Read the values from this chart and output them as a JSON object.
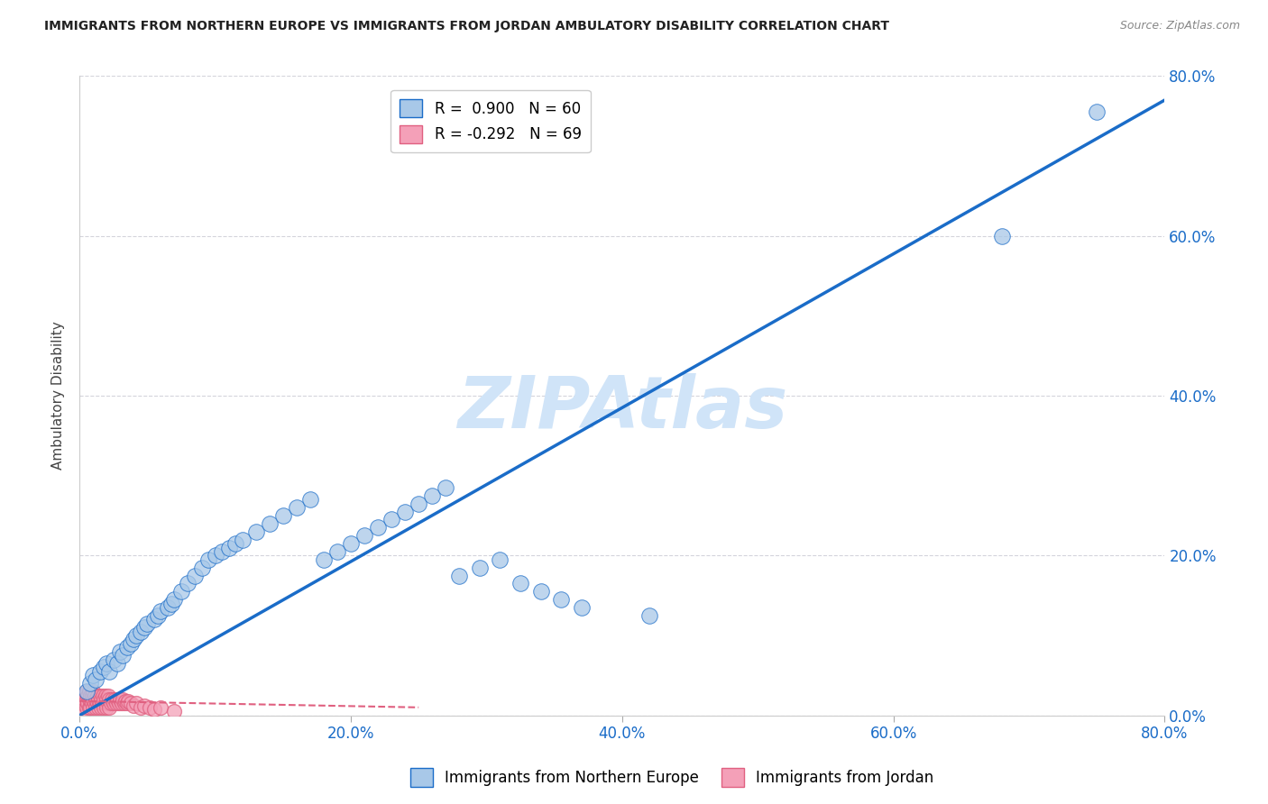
{
  "title": "IMMIGRANTS FROM NORTHERN EUROPE VS IMMIGRANTS FROM JORDAN AMBULATORY DISABILITY CORRELATION CHART",
  "source": "Source: ZipAtlas.com",
  "xlabel": "",
  "ylabel": "Ambulatory Disability",
  "xlim": [
    0,
    0.8
  ],
  "ylim": [
    0,
    0.8
  ],
  "xticks": [
    0.0,
    0.2,
    0.4,
    0.6,
    0.8
  ],
  "yticks": [
    0.0,
    0.2,
    0.4,
    0.6,
    0.8
  ],
  "xtick_labels": [
    "0.0%",
    "20.0%",
    "40.0%",
    "60.0%",
    "80.0%"
  ],
  "ytick_labels": [
    "0.0%",
    "20.0%",
    "40.0%",
    "60.0%",
    "80.0%"
  ],
  "blue_R": 0.9,
  "blue_N": 60,
  "pink_R": -0.292,
  "pink_N": 69,
  "blue_color": "#a8c8e8",
  "pink_color": "#f4a0b8",
  "blue_line_color": "#1a6cc8",
  "pink_line_color": "#e06080",
  "legend_label_blue": "Immigrants from Northern Europe",
  "legend_label_pink": "Immigrants from Jordan",
  "watermark": "ZIPAtlas",
  "watermark_color": "#d0e4f8",
  "background_color": "#ffffff",
  "grid_color": "#d0d0d8",
  "blue_scatter_x": [
    0.005,
    0.008,
    0.01,
    0.012,
    0.015,
    0.018,
    0.02,
    0.022,
    0.025,
    0.028,
    0.03,
    0.032,
    0.035,
    0.038,
    0.04,
    0.042,
    0.045,
    0.048,
    0.05,
    0.055,
    0.058,
    0.06,
    0.065,
    0.068,
    0.07,
    0.075,
    0.08,
    0.085,
    0.09,
    0.095,
    0.1,
    0.105,
    0.11,
    0.115,
    0.12,
    0.13,
    0.14,
    0.15,
    0.16,
    0.17,
    0.18,
    0.19,
    0.2,
    0.21,
    0.22,
    0.23,
    0.24,
    0.25,
    0.26,
    0.27,
    0.28,
    0.295,
    0.31,
    0.325,
    0.34,
    0.355,
    0.37,
    0.42,
    0.68,
    0.75
  ],
  "blue_scatter_y": [
    0.03,
    0.04,
    0.05,
    0.045,
    0.055,
    0.06,
    0.065,
    0.055,
    0.07,
    0.065,
    0.08,
    0.075,
    0.085,
    0.09,
    0.095,
    0.1,
    0.105,
    0.11,
    0.115,
    0.12,
    0.125,
    0.13,
    0.135,
    0.14,
    0.145,
    0.155,
    0.165,
    0.175,
    0.185,
    0.195,
    0.2,
    0.205,
    0.21,
    0.215,
    0.22,
    0.23,
    0.24,
    0.25,
    0.26,
    0.27,
    0.195,
    0.205,
    0.215,
    0.225,
    0.235,
    0.245,
    0.255,
    0.265,
    0.275,
    0.285,
    0.175,
    0.185,
    0.195,
    0.165,
    0.155,
    0.145,
    0.135,
    0.125,
    0.6,
    0.755
  ],
  "pink_scatter_x": [
    0.001,
    0.002,
    0.003,
    0.003,
    0.004,
    0.004,
    0.005,
    0.005,
    0.005,
    0.006,
    0.006,
    0.007,
    0.007,
    0.007,
    0.008,
    0.008,
    0.008,
    0.009,
    0.009,
    0.01,
    0.01,
    0.01,
    0.011,
    0.011,
    0.012,
    0.012,
    0.013,
    0.013,
    0.014,
    0.014,
    0.015,
    0.015,
    0.016,
    0.016,
    0.017,
    0.017,
    0.018,
    0.018,
    0.019,
    0.019,
    0.02,
    0.02,
    0.021,
    0.021,
    0.022,
    0.022,
    0.023,
    0.024,
    0.025,
    0.026,
    0.027,
    0.028,
    0.029,
    0.03,
    0.031,
    0.032,
    0.033,
    0.034,
    0.035,
    0.036,
    0.038,
    0.04,
    0.042,
    0.045,
    0.048,
    0.052,
    0.055,
    0.06,
    0.07
  ],
  "pink_scatter_y": [
    0.01,
    0.015,
    0.02,
    0.025,
    0.015,
    0.02,
    0.01,
    0.02,
    0.03,
    0.015,
    0.025,
    0.01,
    0.02,
    0.03,
    0.01,
    0.02,
    0.025,
    0.015,
    0.025,
    0.01,
    0.02,
    0.03,
    0.015,
    0.025,
    0.01,
    0.02,
    0.015,
    0.025,
    0.01,
    0.02,
    0.015,
    0.025,
    0.01,
    0.02,
    0.015,
    0.025,
    0.01,
    0.02,
    0.015,
    0.025,
    0.01,
    0.02,
    0.015,
    0.025,
    0.01,
    0.02,
    0.015,
    0.02,
    0.015,
    0.02,
    0.015,
    0.02,
    0.015,
    0.02,
    0.015,
    0.02,
    0.015,
    0.018,
    0.015,
    0.018,
    0.015,
    0.012,
    0.015,
    0.01,
    0.012,
    0.01,
    0.008,
    0.01,
    0.005
  ],
  "blue_trend_x": [
    0.0,
    0.8
  ],
  "blue_trend_y": [
    0.0,
    0.77
  ],
  "pink_trend_x": [
    0.0,
    0.25
  ],
  "pink_trend_y": [
    0.018,
    0.01
  ]
}
